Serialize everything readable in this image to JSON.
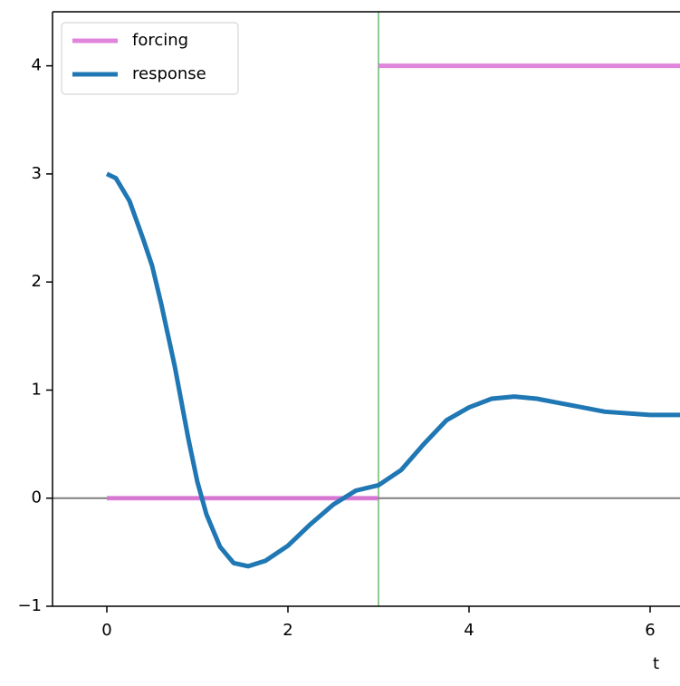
{
  "chart_data": {
    "type": "line",
    "xlabel": "t",
    "x": [
      0,
      0.1,
      0.25,
      0.4,
      0.5,
      0.6,
      0.75,
      0.9,
      1.0,
      1.1,
      1.25,
      1.4,
      1.56,
      1.75,
      2.0,
      2.25,
      2.5,
      2.75,
      3.0,
      3.25,
      3.5,
      3.75,
      4.0,
      4.25,
      4.5,
      4.75,
      5.0,
      5.5,
      6.0,
      6.33
    ],
    "series": [
      {
        "name": "forcing",
        "color": "#da70d6",
        "x": [
          0,
          3,
          3,
          3,
          6.33
        ],
        "values": [
          0,
          0,
          null,
          4,
          4
        ]
      },
      {
        "name": "response",
        "color": "#1f77b4",
        "values": [
          3.0,
          2.96,
          2.75,
          2.4,
          2.15,
          1.8,
          1.22,
          0.55,
          0.15,
          -0.15,
          -0.45,
          -0.6,
          -0.63,
          -0.58,
          -0.44,
          -0.24,
          -0.06,
          0.07,
          0.12,
          0.26,
          0.5,
          0.72,
          0.84,
          0.92,
          0.94,
          0.92,
          0.88,
          0.8,
          0.77,
          0.77
        ]
      }
    ],
    "vlines": [
      3
    ],
    "vline_color": "#2ca02c",
    "hlines": [
      0
    ],
    "hline_color": "#7f7f7f",
    "xlim": [
      -0.6,
      6.33
    ],
    "ylim": [
      -1,
      4.5
    ],
    "xticks": [
      0,
      2,
      4,
      6
    ],
    "yticks": [
      {
        "value": -1,
        "label": "−1"
      },
      0,
      1,
      2,
      3,
      4
    ],
    "legend": "upper left"
  }
}
